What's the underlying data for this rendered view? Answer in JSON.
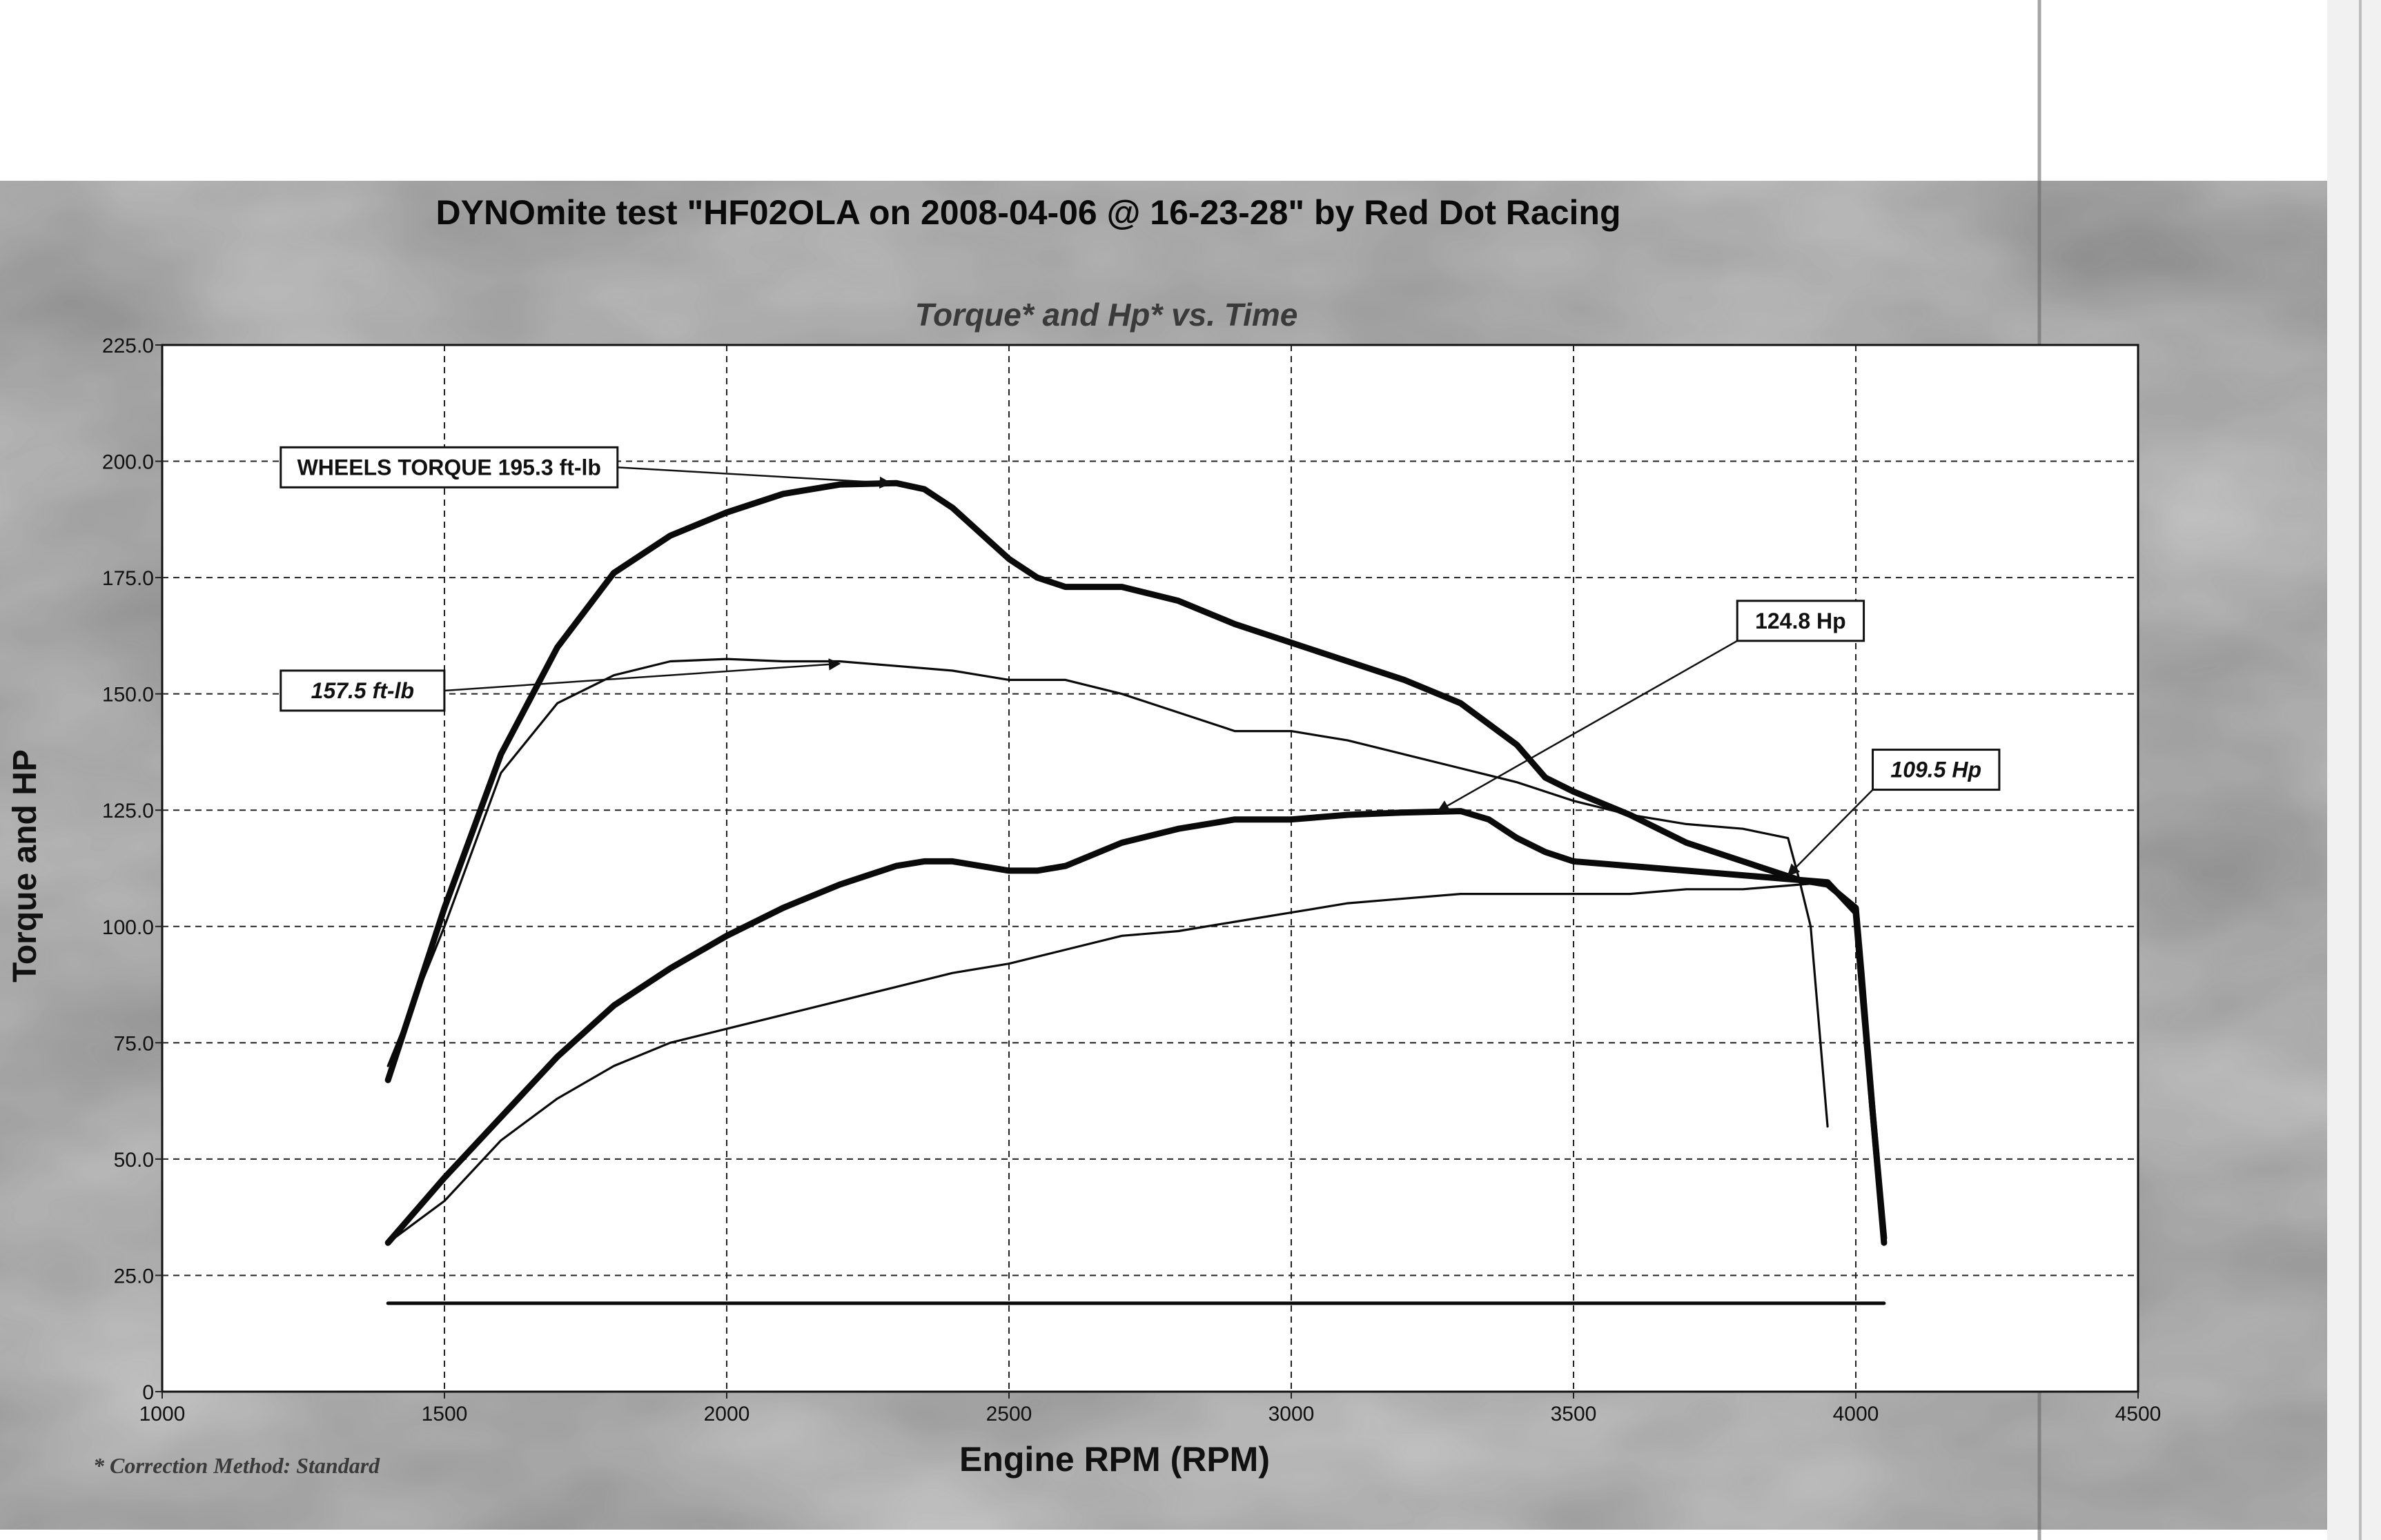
{
  "colors": {
    "paper": "#ffffff",
    "frame": "#8e8e8e",
    "frame_light": "#b3b3b3",
    "plot_bg": "#ffffff",
    "grid": "#222222",
    "line": "#0a0a0a"
  },
  "chart_data": {
    "type": "line",
    "title": "DYNOmite test \"HF02OLA on 2008-04-06 @ 16-23-28\" by Red Dot Racing",
    "subtitle": "Torque* and Hp* vs. Time",
    "xlabel": "Engine RPM (RPM)",
    "ylabel": "Torque and HP",
    "xlim": [
      1000,
      4500
    ],
    "ylim": [
      0,
      225
    ],
    "x_ticks": [
      "1000",
      "1500",
      "2000",
      "2500",
      "3000",
      "3500",
      "4000",
      "4500"
    ],
    "y_ticks": [
      "0",
      "25.0",
      "50.0",
      "75.0",
      "100.0",
      "125.0",
      "150.0",
      "175.0",
      "200.0",
      "225.0"
    ],
    "grid": true,
    "footnote": "* Correction Method: Standard",
    "series": [
      {
        "weight": "thick",
        "x": [
          1400,
          1500,
          1600,
          1700,
          1800,
          1900,
          2000,
          2100,
          2200,
          2300,
          2350,
          2400,
          2500,
          2550,
          2600,
          2700,
          2800,
          2900,
          3000,
          3100,
          3200,
          3300,
          3400,
          3450,
          3500,
          3600,
          3700,
          3800,
          3900,
          3950,
          4000,
          4010,
          4030,
          4050
        ],
        "y": [
          67,
          104,
          137,
          160,
          176,
          184,
          189,
          193,
          195,
          195.3,
          194,
          190,
          179,
          175,
          173,
          173,
          170,
          165,
          161,
          157,
          153,
          148,
          139,
          132,
          129,
          124,
          118,
          114,
          110,
          109,
          104,
          90,
          60,
          32
        ]
      },
      {
        "weight": "thin",
        "x": [
          1400,
          1500,
          1600,
          1700,
          1800,
          1900,
          2000,
          2100,
          2200,
          2300,
          2400,
          2500,
          2600,
          2700,
          2800,
          2900,
          3000,
          3100,
          3200,
          3300,
          3400,
          3500,
          3600,
          3700,
          3800,
          3880,
          3900,
          3920,
          3950
        ],
        "y": [
          70,
          100,
          133,
          148,
          154,
          157,
          157.5,
          157,
          157,
          156,
          155,
          153,
          153,
          150,
          146,
          142,
          142,
          140,
          137,
          134,
          131,
          127,
          124,
          122,
          121,
          119,
          110,
          100,
          57
        ]
      },
      {
        "weight": "thick",
        "x": [
          1400,
          1500,
          1600,
          1700,
          1800,
          1900,
          2000,
          2100,
          2200,
          2300,
          2350,
          2400,
          2500,
          2550,
          2600,
          2700,
          2800,
          2900,
          3000,
          3100,
          3200,
          3300,
          3350,
          3400,
          3450,
          3500,
          3600,
          3700,
          3800,
          3900,
          3950,
          4000,
          4010,
          4030,
          4050
        ],
        "y": [
          32,
          46,
          59,
          72,
          83,
          91,
          98,
          104,
          109,
          113,
          114,
          114,
          112,
          112,
          113,
          118,
          121,
          123,
          123,
          124,
          124.5,
          124.8,
          123,
          119,
          116,
          114,
          113,
          112,
          111,
          110,
          109.5,
          103,
          88,
          60,
          33
        ]
      },
      {
        "weight": "thin",
        "x": [
          1400,
          1500,
          1600,
          1700,
          1800,
          1900,
          2000,
          2100,
          2200,
          2300,
          2400,
          2500,
          2600,
          2700,
          2800,
          2900,
          3000,
          3100,
          3200,
          3300,
          3400,
          3500,
          3600,
          3700,
          3800,
          3900,
          3950
        ],
        "y": [
          32,
          41,
          54,
          63,
          70,
          75,
          78,
          81,
          84,
          87,
          90,
          92,
          95,
          98,
          99,
          101,
          103,
          105,
          106,
          107,
          107,
          107,
          107,
          108,
          108,
          109,
          109.5
        ]
      },
      {
        "weight": "medium",
        "x": [
          1400,
          4050
        ],
        "y": [
          19,
          19
        ]
      }
    ],
    "annotations": [
      {
        "text": "WHEELS TORQUE 195.3 ft-lb",
        "italic": false,
        "box_x": 1210,
        "box_y": 203,
        "point_x": 2290,
        "point_y": 195.3
      },
      {
        "text": "157.5 ft-lb",
        "italic": true,
        "box_x": 1210,
        "box_y": 155,
        "point_x": 2200,
        "point_y": 156.5
      },
      {
        "text": "124.8 Hp",
        "italic": false,
        "box_x": 3790,
        "box_y": 170,
        "point_x": 3260,
        "point_y": 124.8
      },
      {
        "text": "109.5 Hp",
        "italic": true,
        "box_x": 4030,
        "box_y": 138,
        "point_x": 3880,
        "point_y": 111
      }
    ]
  }
}
